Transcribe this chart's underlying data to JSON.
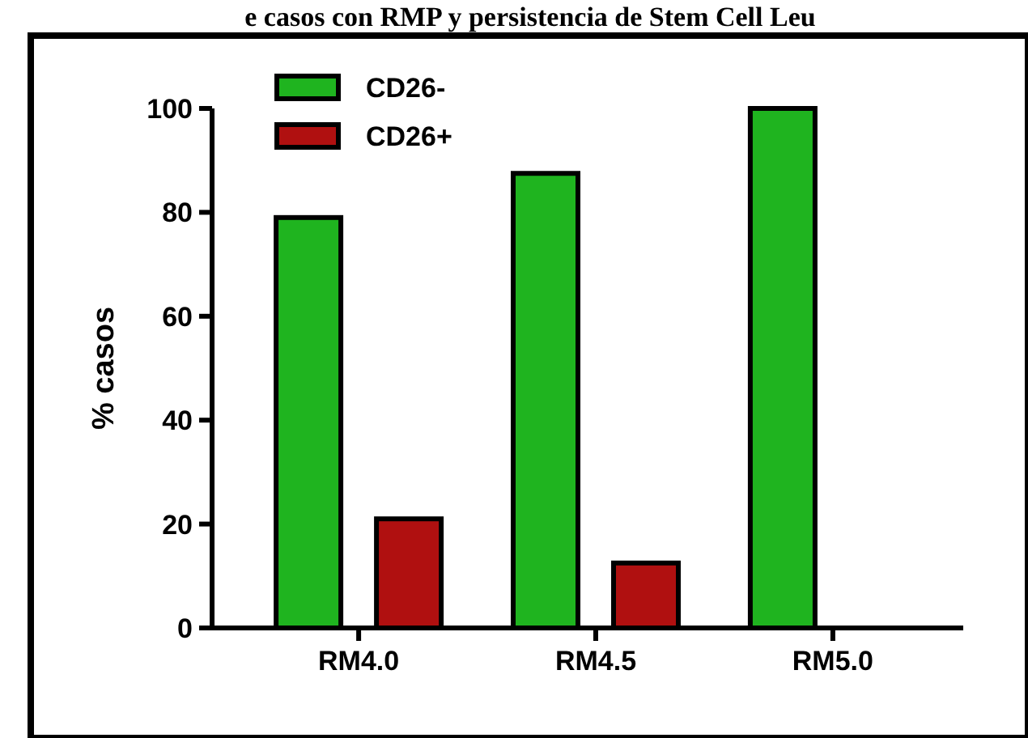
{
  "chart_data": {
    "type": "bar",
    "title": "e casos con RMP y persistencia de Stem Cell Leu",
    "ylabel": "% casos",
    "categories": [
      "RM4.0",
      "RM4.5",
      "RM5.0"
    ],
    "series": [
      {
        "name": "CD26-",
        "color": "#1fb41f",
        "values": [
          79,
          87.5,
          100
        ]
      },
      {
        "name": "CD26+",
        "color": "#b01010",
        "values": [
          21,
          12.5,
          0
        ]
      }
    ],
    "ylim": [
      0,
      100
    ],
    "yticks": [
      0,
      20,
      40,
      60,
      80,
      100
    ],
    "legend": "top left"
  }
}
